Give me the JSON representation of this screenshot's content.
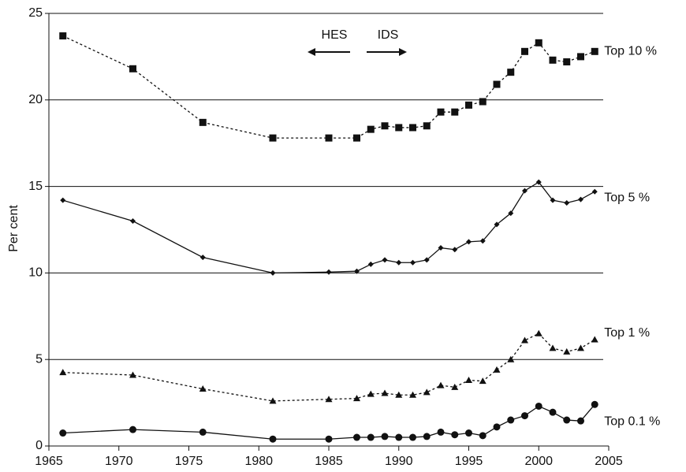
{
  "chart_data": {
    "type": "line",
    "y_label": "Per cent",
    "annotations": [
      "HES",
      "IDS"
    ],
    "x": [
      1966,
      1971,
      1976,
      1981,
      1985,
      1987,
      1988,
      1989,
      1990,
      1991,
      1992,
      1993,
      1994,
      1995,
      1996,
      1997,
      1998,
      1999,
      2000,
      2001,
      2002,
      2003,
      2004
    ],
    "series": [
      {
        "name": "Top 10 %",
        "color": "#111111",
        "marker": "square",
        "dashed": true,
        "values": [
          23.7,
          21.8,
          18.7,
          17.8,
          17.8,
          17.8,
          18.3,
          18.5,
          18.4,
          18.4,
          18.5,
          19.3,
          19.3,
          19.7,
          19.9,
          20.9,
          21.6,
          22.8,
          23.3,
          22.3,
          22.2,
          22.5,
          22.8
        ]
      },
      {
        "name": "Top 5 %",
        "color": "#111111",
        "marker": "diamond",
        "dashed": false,
        "values": [
          14.2,
          13.0,
          10.9,
          10.0,
          10.05,
          10.1,
          10.5,
          10.75,
          10.6,
          10.6,
          10.75,
          11.45,
          11.35,
          11.8,
          11.85,
          12.8,
          13.45,
          14.75,
          15.25,
          14.2,
          14.05,
          14.25,
          14.7
        ]
      },
      {
        "name": "Top 1 %",
        "color": "#111111",
        "marker": "triangle",
        "dashed": true,
        "values": [
          4.25,
          4.1,
          3.3,
          2.6,
          2.7,
          2.75,
          3.0,
          3.05,
          2.95,
          2.95,
          3.1,
          3.5,
          3.4,
          3.8,
          3.75,
          4.4,
          5.0,
          6.1,
          6.5,
          5.65,
          5.45,
          5.65,
          6.15
        ]
      },
      {
        "name": "Top 0.1 %",
        "color": "#111111",
        "marker": "circle",
        "dashed": false,
        "values": [
          0.75,
          0.95,
          0.8,
          0.4,
          0.4,
          0.5,
          0.5,
          0.55,
          0.5,
          0.5,
          0.55,
          0.8,
          0.65,
          0.75,
          0.6,
          1.1,
          1.5,
          1.75,
          2.3,
          1.95,
          1.5,
          1.45,
          2.4
        ]
      }
    ],
    "xlim": [
      1965,
      2005
    ],
    "xticks": [
      1965,
      1970,
      1975,
      1980,
      1985,
      1990,
      1995,
      2000,
      2005
    ],
    "ylim": [
      0,
      25
    ],
    "yticks": [
      0,
      5,
      10,
      15,
      20,
      25
    ],
    "grid": true
  }
}
